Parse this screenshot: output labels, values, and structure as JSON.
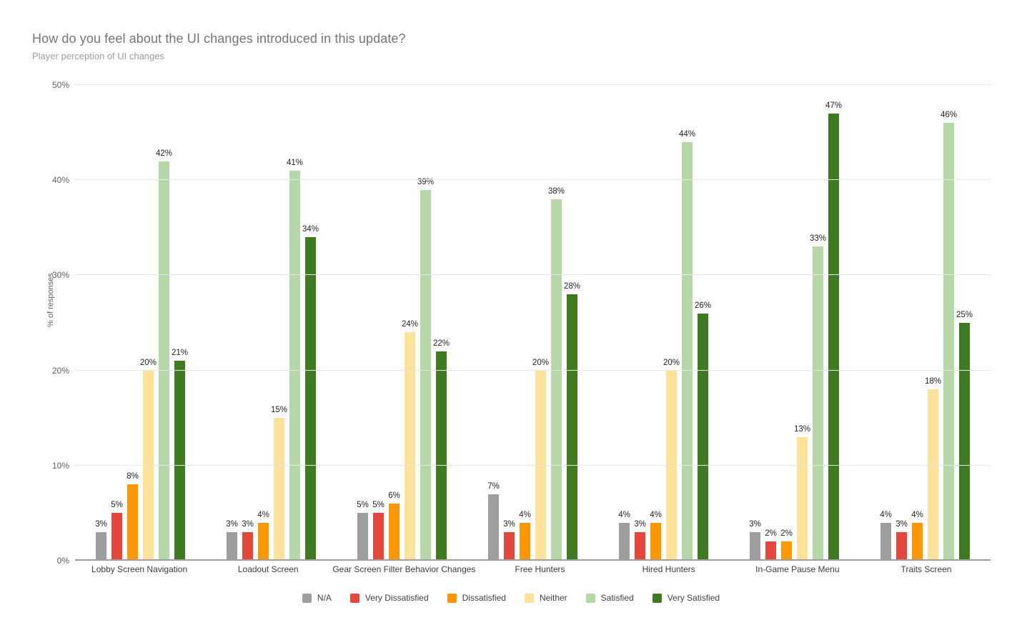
{
  "chart_data": {
    "type": "bar",
    "title": "How do you feel about the UI changes introduced in this update?",
    "subtitle": "Player perception of UI changes",
    "xlabel": "",
    "ylabel": "% of responses",
    "ylim": [
      0,
      50
    ],
    "ytick_step": 10,
    "ytick_labels": [
      "0%",
      "10%",
      "20%",
      "30%",
      "40%",
      "50%"
    ],
    "grid": true,
    "legend_position": "bottom",
    "value_suffix": "%",
    "categories": [
      "Lobby Screen Navigation",
      "Loadout Screen",
      "Gear Screen Filter Behavior Changes",
      "Free Hunters",
      "Hired Hunters",
      "In-Game Pause Menu",
      "Traits Screen"
    ],
    "series": [
      {
        "name": "N/A",
        "color": "#9e9e9e",
        "values": [
          3,
          3,
          5,
          7,
          4,
          3,
          4
        ]
      },
      {
        "name": "Very Dissatisfied",
        "color": "#e5473c",
        "values": [
          5,
          3,
          5,
          3,
          3,
          2,
          3
        ]
      },
      {
        "name": "Dissatisfied",
        "color": "#ff9800",
        "values": [
          8,
          4,
          6,
          4,
          4,
          2,
          4
        ]
      },
      {
        "name": "Neither",
        "color": "#ffe29a",
        "values": [
          20,
          15,
          24,
          20,
          20,
          13,
          18
        ]
      },
      {
        "name": "Satisfied",
        "color": "#b6d7a8",
        "values": [
          42,
          41,
          39,
          38,
          44,
          33,
          46
        ]
      },
      {
        "name": "Very Satisfied",
        "color": "#3e7a20",
        "values": [
          21,
          34,
          22,
          28,
          26,
          47,
          25
        ]
      }
    ],
    "colors": {
      "background": "#ffffff",
      "gridline": "#e7e7e7",
      "axis_line": "#9e9e9e",
      "title_text": "#757575",
      "subtitle_text": "#9e9e9e",
      "tick_text": "#5f5f5f",
      "value_label_text": "#1f1f1f"
    }
  }
}
